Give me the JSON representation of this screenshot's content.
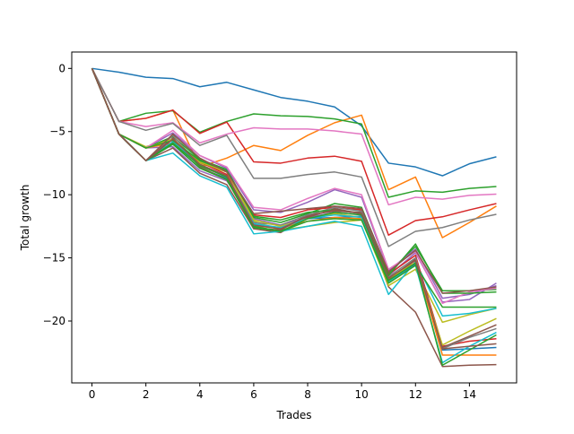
{
  "chart_data": {
    "type": "line",
    "title": "",
    "xlabel": "Trades",
    "ylabel": "Total growth",
    "xlim": [
      -0.75,
      15.75
    ],
    "ylim": [
      -24.9,
      1.3
    ],
    "xticks": [
      0,
      2,
      4,
      6,
      8,
      10,
      12,
      14
    ],
    "xtick_labels": [
      "0",
      "2",
      "4",
      "6",
      "8",
      "10",
      "12",
      "14"
    ],
    "yticks": [
      0,
      -5,
      -10,
      -15,
      -20
    ],
    "ytick_labels": [
      "0",
      "−5",
      "−10",
      "−15",
      "−20"
    ],
    "grid": false,
    "legend": "none",
    "x": [
      0,
      1,
      2,
      3,
      4,
      5,
      6,
      7,
      8,
      9,
      10,
      11,
      12,
      13,
      14,
      15
    ],
    "series": [
      {
        "color": "#1f77b4",
        "values": [
          0,
          -0.3,
          -0.7,
          -0.8,
          -1.45,
          -1.1,
          -1.7,
          -2.3,
          -2.6,
          -3.05,
          -4.55,
          -7.5,
          -7.8,
          -8.5,
          -7.55,
          -7.0
        ]
      },
      {
        "color": "#ff7f0e",
        "values": [
          0,
          -4.2,
          -3.95,
          -3.3,
          -7.8,
          -7.1,
          -6.1,
          -6.5,
          -5.3,
          -4.3,
          -3.7,
          -9.6,
          -8.6,
          -13.4,
          -12.2,
          -10.9
        ]
      },
      {
        "color": "#2ca02c",
        "values": [
          0,
          -4.2,
          -3.55,
          -3.35,
          -5.05,
          -4.2,
          -3.6,
          -3.75,
          -3.8,
          -4.0,
          -4.4,
          -10.2,
          -9.7,
          -9.8,
          -9.5,
          -9.35
        ]
      },
      {
        "color": "#d62728",
        "values": [
          0,
          -4.2,
          -3.95,
          -3.3,
          -5.15,
          -4.25,
          -7.4,
          -7.5,
          -7.1,
          -6.95,
          -7.35,
          -13.2,
          -12.05,
          -11.75,
          -11.2,
          -10.7
        ]
      },
      {
        "color": "#9467bd",
        "values": [
          0,
          -5.2,
          -6.3,
          -6.2,
          -8.1,
          -8.9,
          -11.9,
          -12.4,
          -11.8,
          -11.4,
          -11.6,
          -16.4,
          -14.6,
          -18.5,
          -18.3,
          -17.0
        ]
      },
      {
        "color": "#8c564b",
        "values": [
          0,
          -5.2,
          -7.3,
          -6.3,
          -8.3,
          -9.2,
          -12.7,
          -13.0,
          -11.8,
          -11.1,
          -11.5,
          -17.3,
          -19.3,
          -23.6,
          -23.5,
          -23.45
        ]
      },
      {
        "color": "#e377c2",
        "values": [
          0,
          -4.2,
          -4.6,
          -4.3,
          -5.9,
          -5.2,
          -4.7,
          -4.8,
          -4.8,
          -4.95,
          -5.2,
          -10.8,
          -10.2,
          -10.35,
          -10.05,
          -9.95
        ]
      },
      {
        "color": "#7f7f7f",
        "values": [
          0,
          -4.2,
          -4.9,
          -4.35,
          -6.1,
          -5.3,
          -8.7,
          -8.7,
          -8.4,
          -8.2,
          -8.6,
          -14.1,
          -12.9,
          -12.6,
          -12.0,
          -11.55
        ]
      },
      {
        "color": "#bcbd22",
        "values": [
          0,
          -5.2,
          -6.2,
          -5.6,
          -7.5,
          -8.2,
          -12.1,
          -12.8,
          -12.5,
          -12.2,
          -12.0,
          -17.2,
          -15.9,
          -20.1,
          -19.5,
          -19.0
        ]
      },
      {
        "color": "#17becf",
        "values": [
          0,
          -5.2,
          -7.3,
          -6.7,
          -8.5,
          -9.4,
          -13.1,
          -12.9,
          -12.5,
          -12.1,
          -12.5,
          -17.9,
          -15.3,
          -19.6,
          -19.4,
          -19.0
        ]
      },
      {
        "color": "#1f77b4",
        "values": [
          0,
          -5.2,
          -7.3,
          -6.0,
          -7.9,
          -8.7,
          -12.3,
          -12.7,
          -11.9,
          -11.8,
          -11.7,
          -16.9,
          -15.5,
          -22.3,
          -22.2,
          -22.1
        ]
      },
      {
        "color": "#ff7f0e",
        "values": [
          0,
          -5.2,
          -6.3,
          -5.9,
          -7.6,
          -8.6,
          -12.5,
          -12.6,
          -12.1,
          -11.8,
          -11.9,
          -16.8,
          -15.2,
          -22.7,
          -22.7,
          -22.7
        ]
      },
      {
        "color": "#2ca02c",
        "values": [
          0,
          -5.2,
          -6.3,
          -5.4,
          -7.2,
          -8.0,
          -11.8,
          -12.2,
          -11.5,
          -10.7,
          -11.0,
          -16.2,
          -14.1,
          -17.6,
          -17.6,
          -17.5
        ]
      },
      {
        "color": "#d62728",
        "values": [
          0,
          -5.2,
          -7.3,
          -5.8,
          -7.4,
          -8.4,
          -11.6,
          -11.8,
          -11.2,
          -11.0,
          -11.2,
          -16.3,
          -14.8,
          -22.0,
          -21.6,
          -21.4
        ]
      },
      {
        "color": "#9467bd",
        "values": [
          0,
          -5.2,
          -6.3,
          -5.1,
          -6.9,
          -7.9,
          -11.2,
          -11.4,
          -10.6,
          -9.6,
          -10.2,
          -16.0,
          -14.3,
          -18.2,
          -17.9,
          -17.2
        ]
      },
      {
        "color": "#8c564b",
        "values": [
          0,
          -5.2,
          -7.3,
          -5.5,
          -7.8,
          -8.8,
          -12.6,
          -12.8,
          -11.6,
          -11.3,
          -11.4,
          -16.7,
          -15.1,
          -22.1,
          -21.2,
          -20.3
        ]
      },
      {
        "color": "#e377c2",
        "values": [
          0,
          -5.2,
          -6.3,
          -4.9,
          -6.9,
          -7.8,
          -11.0,
          -11.2,
          -10.3,
          -9.5,
          -10.0,
          -15.9,
          -14.5,
          -18.6,
          -17.7,
          -17.4
        ]
      },
      {
        "color": "#7f7f7f",
        "values": [
          0,
          -5.2,
          -7.3,
          -5.3,
          -7.7,
          -8.5,
          -12.2,
          -12.4,
          -11.6,
          -11.0,
          -11.3,
          -16.5,
          -15.0,
          -22.2,
          -21.3,
          -20.6
        ]
      },
      {
        "color": "#bcbd22",
        "values": [
          0,
          -5.2,
          -6.3,
          -5.6,
          -7.4,
          -8.2,
          -12.0,
          -12.5,
          -11.9,
          -11.5,
          -11.8,
          -16.6,
          -15.4,
          -21.9,
          -20.8,
          -19.8
        ]
      },
      {
        "color": "#17becf",
        "values": [
          0,
          -5.2,
          -7.3,
          -5.8,
          -7.6,
          -8.6,
          -12.3,
          -12.6,
          -11.9,
          -11.6,
          -11.8,
          -16.9,
          -15.6,
          -23.3,
          -22.0,
          -20.9
        ]
      },
      {
        "color": "#2ca02c",
        "values": [
          0,
          -5.2,
          -6.3,
          -5.7,
          -7.3,
          -8.1,
          -11.7,
          -12.0,
          -11.4,
          -11.2,
          -11.5,
          -16.4,
          -13.9,
          -17.8,
          -17.8,
          -17.7
        ]
      },
      {
        "color": "#2ca02c",
        "values": [
          0,
          -5.2,
          -7.3,
          -5.9,
          -7.7,
          -8.6,
          -12.5,
          -12.9,
          -11.9,
          -11.4,
          -11.6,
          -16.8,
          -15.4,
          -23.5,
          -22.3,
          -21.1
        ]
      },
      {
        "color": "#2ca02c",
        "values": [
          0,
          -5.2,
          -7.3,
          -6.0,
          -7.9,
          -8.8,
          -12.6,
          -12.9,
          -12.1,
          -11.9,
          -12.0,
          -17.0,
          -15.6,
          -18.9,
          -18.9,
          -18.9
        ]
      },
      {
        "color": "#8c564b",
        "values": [
          0,
          -5.2,
          -7.3,
          -5.6,
          -7.6,
          -8.5,
          -12.4,
          -12.7,
          -11.7,
          -11.2,
          -11.5,
          -16.6,
          -15.2,
          -22.2,
          -22.0,
          -21.8
        ]
      },
      {
        "color": "#8c564b",
        "values": [
          0,
          -5.2,
          -7.3,
          -5.2,
          -7.1,
          -8.2,
          -11.5,
          -11.3,
          -11.1,
          -10.9,
          -11.1,
          -16.1,
          -14.4,
          -17.8,
          -17.6,
          -17.3
        ]
      }
    ]
  }
}
